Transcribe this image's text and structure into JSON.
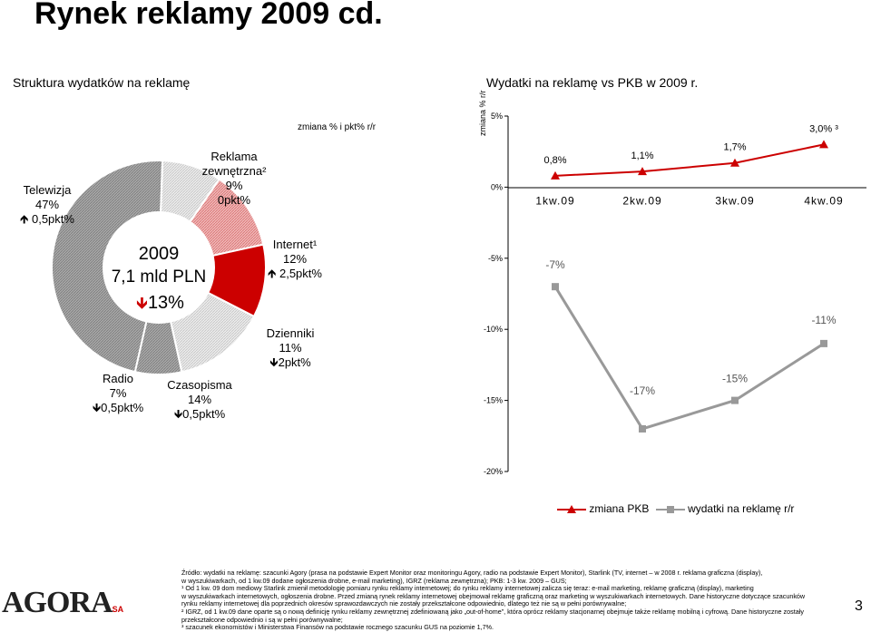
{
  "title": "Rynek reklamy 2009 cd.",
  "left_panel": {
    "heading": "Struktura wydatków na reklamę",
    "change_caption": "zmiana % i pkt% r/r",
    "center": {
      "year": "2009",
      "total": "7,1 mld PLN",
      "change": "13%",
      "change_dir": "down"
    }
  },
  "right_panel": {
    "heading": "Wydatki na reklamę vs PKB w 2009 r.",
    "axis_title": "zmiana % r/r"
  },
  "chart_data": [
    {
      "type": "pie",
      "title": "Struktura wydatków na reklamę",
      "slices": [
        {
          "label": "Telewizja",
          "share_pct": 47,
          "change": "0,5pkt%",
          "dir": "up",
          "color": "#a0a0a0"
        },
        {
          "label": "Reklama zewnętrzna²",
          "share_pct": 9,
          "change": "0pkt%",
          "dir": "none",
          "color": "#e6e6e6"
        },
        {
          "label": "Internet¹",
          "share_pct": 12,
          "change": "2,5pkt%",
          "dir": "up",
          "color": "#e8a0a0"
        },
        {
          "label": "Dzienniki",
          "share_pct": 11,
          "change": "2pkt%",
          "dir": "down",
          "color": "#cc0000"
        },
        {
          "label": "Czasopisma",
          "share_pct": 14,
          "change": "0,5pkt%",
          "dir": "down",
          "color": "#e0e0e0"
        },
        {
          "label": "Radio",
          "share_pct": 7,
          "change": "0,5pkt%",
          "dir": "down",
          "color": "#b8b8b8"
        }
      ]
    },
    {
      "type": "line",
      "categories": [
        "1kw.09",
        "2kw.09",
        "3kw.09",
        "4kw.09"
      ],
      "ylabel": "zmiana % r/r",
      "ylim": [
        -20,
        5
      ],
      "yticks": [
        "5%",
        "0%",
        "-5%",
        "-10%",
        "-15%",
        "-20%"
      ],
      "grid": false,
      "legend_position": "bottom",
      "series": [
        {
          "name": "zmiana PKB",
          "values": [
            0.8,
            1.1,
            1.7,
            3.0
          ],
          "labels": [
            "0,8%",
            "1,1%",
            "1,7%",
            "3,0% ³"
          ],
          "color": "#cc0000",
          "marker": "triangle"
        },
        {
          "name": "wydatki na reklamę r/r",
          "values": [
            -7,
            -17,
            -15,
            -11
          ],
          "labels": [
            "-7%",
            "-17%",
            "-15%",
            "-11%"
          ],
          "color": "#999999",
          "marker": "square"
        }
      ]
    }
  ],
  "footnotes": [
    "Źródło: wydatki na reklamę: szacunki Agory (prasa na podstawie Expert Monitor oraz monitoringu Agory, radio na podstawie Expert Monitor), Starlink (TV, internet – w 2008 r. reklama graficzna (display),",
    "w wyszukiwarkach, od 1 kw.09 dodane ogłoszenia drobne, e-mail marketing), IGRZ (reklama zewnętrzna); PKB: 1-3 kw. 2009 – GUS;",
    "¹ Od 1 kw. 09 dom mediowy Starlink zmienił metodologię pomiaru rynku reklamy internetowej; do rynku reklamy internetowej zalicza się teraz: e-mail marketing, reklamę graficzną (display), marketing",
    "w wyszukiwarkach internetowych, ogłoszenia drobne. Przed zmianą rynek reklamy internetowej obejmował reklamę graficzną oraz marketing w wyszukiwarkach internetowych. Dane historyczne dotyczące szacunków",
    "rynku reklamy internetowej dla poprzednich okresów sprawozdawczych nie zostały przekształcone odpowiednio, dlatego też nie są w pełni porównywalne;",
    "² IGRZ, od 1 kw.09 dane oparte są o nową definicję rynku reklamy zewnętrznej zdefiniowaną jako „out-of-home”, która oprócz reklamy stacjonarnej obejmuje także reklamę mobilną i cyfrową. Dane historyczne zostały",
    "przekształcone odpowiednio i są w pełni porównywalne;",
    "³ szacunek ekonomistów i Ministerstwa Finansów na podstawie rocznego szacunku GUS na poziomie 1,7%."
  ],
  "logo": {
    "text": "AGORA",
    "suffix": "SA"
  },
  "page_number": "3"
}
